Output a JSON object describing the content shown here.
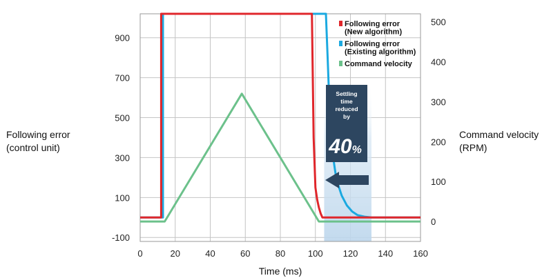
{
  "chart_data": {
    "type": "line",
    "title": "",
    "xlabel": "Time (ms)",
    "ylabel_left": [
      "Following error",
      "(control unit)"
    ],
    "ylabel_right": [
      "Command velocity",
      "(RPM)"
    ],
    "xlim": [
      0,
      160
    ],
    "ylim_left": [
      -120,
      1020
    ],
    "ylim_right": [
      -50,
      520
    ],
    "x_ticks": [
      0,
      20,
      40,
      60,
      80,
      100,
      120,
      140,
      160
    ],
    "y_ticks_left": [
      -100,
      100,
      300,
      500,
      700,
      900
    ],
    "y_ticks_right": [
      0,
      100,
      200,
      300,
      400,
      500
    ],
    "grid": true,
    "legend_position": "top-right",
    "series": [
      {
        "name": "Following error (New algorithm)",
        "axis": "left",
        "color": "#e0262b",
        "x": [
          0,
          12,
          12,
          98,
          99,
          100,
          101,
          102,
          103,
          104,
          160
        ],
        "y": [
          0,
          0,
          1020,
          1020,
          400,
          150,
          90,
          50,
          20,
          0,
          0
        ]
      },
      {
        "name": "Following error (Existing algorithm)",
        "axis": "left",
        "color": "#1ba9e0",
        "x": [
          0,
          13,
          13,
          106,
          107,
          108,
          109,
          110,
          112,
          115,
          118,
          121,
          124,
          128,
          132,
          160
        ],
        "y": [
          0,
          0,
          1020,
          1020,
          800,
          560,
          420,
          310,
          190,
          110,
          60,
          30,
          12,
          4,
          0,
          0
        ]
      },
      {
        "name": "Command velocity",
        "axis": "right",
        "color": "#6cc18b",
        "x": [
          0,
          14,
          58,
          102,
          160
        ],
        "y": [
          0,
          0,
          320,
          0,
          0
        ]
      }
    ],
    "annotations": {
      "shaded_region_x": [
        105,
        132
      ],
      "callout_lines": [
        "Settling",
        "time",
        "reduced",
        "by"
      ],
      "callout_value": "40",
      "callout_unit": "%"
    }
  }
}
